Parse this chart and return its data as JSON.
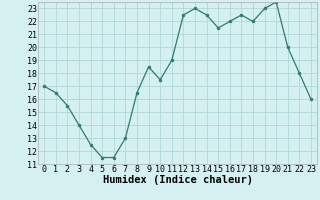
{
  "x": [
    0,
    1,
    2,
    3,
    4,
    5,
    6,
    7,
    8,
    9,
    10,
    11,
    12,
    13,
    14,
    15,
    16,
    17,
    18,
    19,
    20,
    21,
    22,
    23
  ],
  "y": [
    17,
    16.5,
    15.5,
    14,
    12.5,
    11.5,
    11.5,
    13,
    16.5,
    18.5,
    17.5,
    19,
    22.5,
    23,
    22.5,
    21.5,
    22,
    22.5,
    22,
    23,
    23.5,
    20,
    18,
    16
  ],
  "line_color": "#2d7d6e",
  "marker": "o",
  "marker_size": 2,
  "bg_color": "#d5f0f0",
  "grid_color": "#b0d8d8",
  "xlabel": "Humidex (Indice chaleur)",
  "ylim": [
    11,
    23.5
  ],
  "xlim": [
    -0.5,
    23.5
  ],
  "yticks": [
    11,
    12,
    13,
    14,
    15,
    16,
    17,
    18,
    19,
    20,
    21,
    22,
    23
  ],
  "xticks": [
    0,
    1,
    2,
    3,
    4,
    5,
    6,
    7,
    8,
    9,
    10,
    11,
    12,
    13,
    14,
    15,
    16,
    17,
    18,
    19,
    20,
    21,
    22,
    23
  ],
  "tick_fontsize": 6,
  "label_fontsize": 7.5
}
